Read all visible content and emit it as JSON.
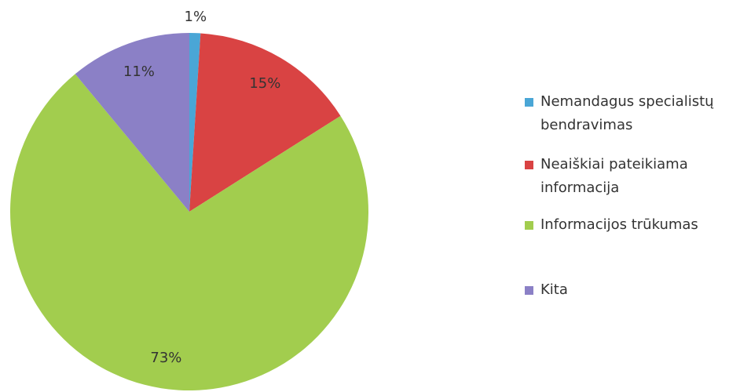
{
  "chart_data": {
    "type": "pie",
    "categories": [
      "Nemandagus specialistų bendravimas",
      "Neaiškiai pateikiama informacija",
      "Informacijos trūkumas",
      "Kita"
    ],
    "values": [
      1,
      15,
      73,
      11
    ],
    "value_labels": [
      "1%",
      "15%",
      "73%",
      "11%"
    ],
    "colors": [
      "#4aa6d6",
      "#d94343",
      "#a2cd4e",
      "#8b80c6"
    ],
    "legend": "right"
  }
}
